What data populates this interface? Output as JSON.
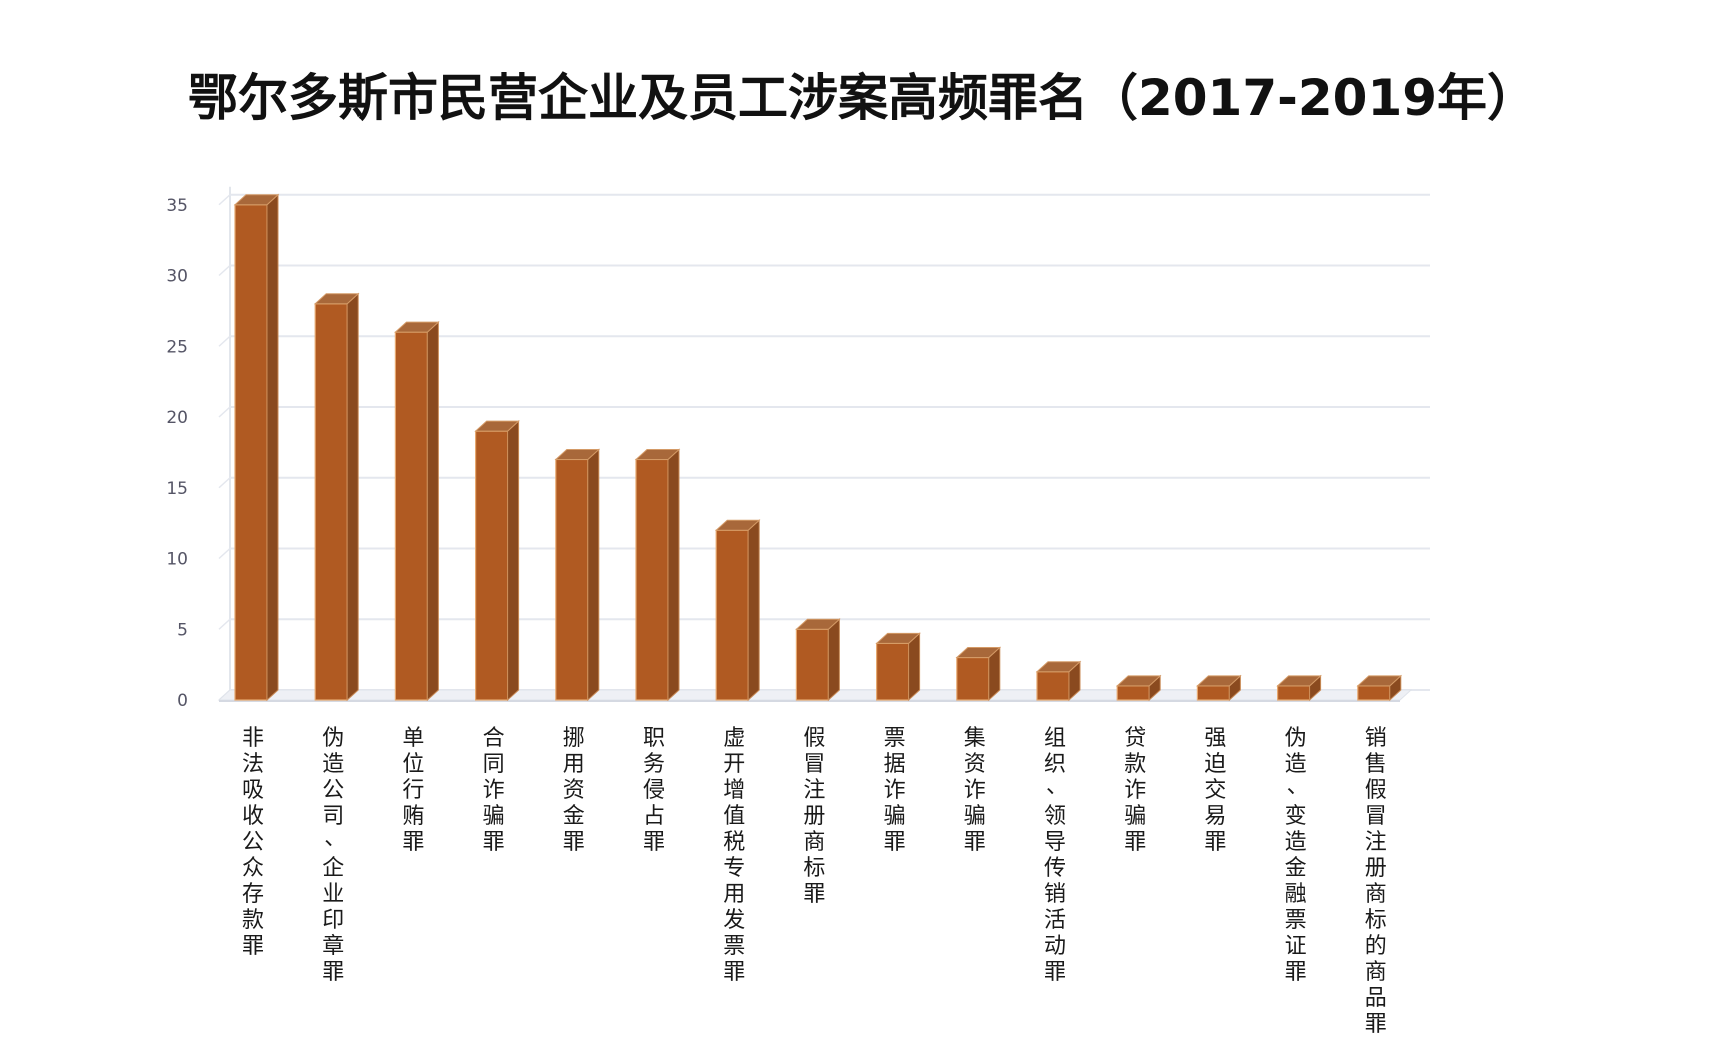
{
  "chart_data": {
    "type": "bar",
    "title": "鄂尔多斯市民营企业及员工涉案高频罪名（2017-2019年）",
    "xlabel": "",
    "ylabel": "",
    "ylim": [
      0,
      35
    ],
    "yticks": [
      0,
      5,
      10,
      15,
      20,
      25,
      30,
      35
    ],
    "grid": true,
    "legend": "none",
    "bar_style": "3d",
    "bar_color": "#b05a22",
    "categories": [
      "非法吸收公众存款罪",
      "伪造公司、企业印章罪",
      "单位行贿罪",
      "合同诈骗罪",
      "挪用资金罪",
      "职务侵占罪",
      "虚开增值税专用发票罪",
      "假冒注册商标罪",
      "票据诈骗罪",
      "集资诈骗罪",
      "组织、领导传销活动罪",
      "贷款诈骗罪",
      "强迫交易罪",
      "伪造、变造金融票证罪",
      "销售假冒注册商标的商品罪"
    ],
    "values": [
      35,
      28,
      26,
      19,
      17,
      17,
      12,
      5,
      4,
      3,
      2,
      1,
      1,
      1,
      1
    ]
  }
}
